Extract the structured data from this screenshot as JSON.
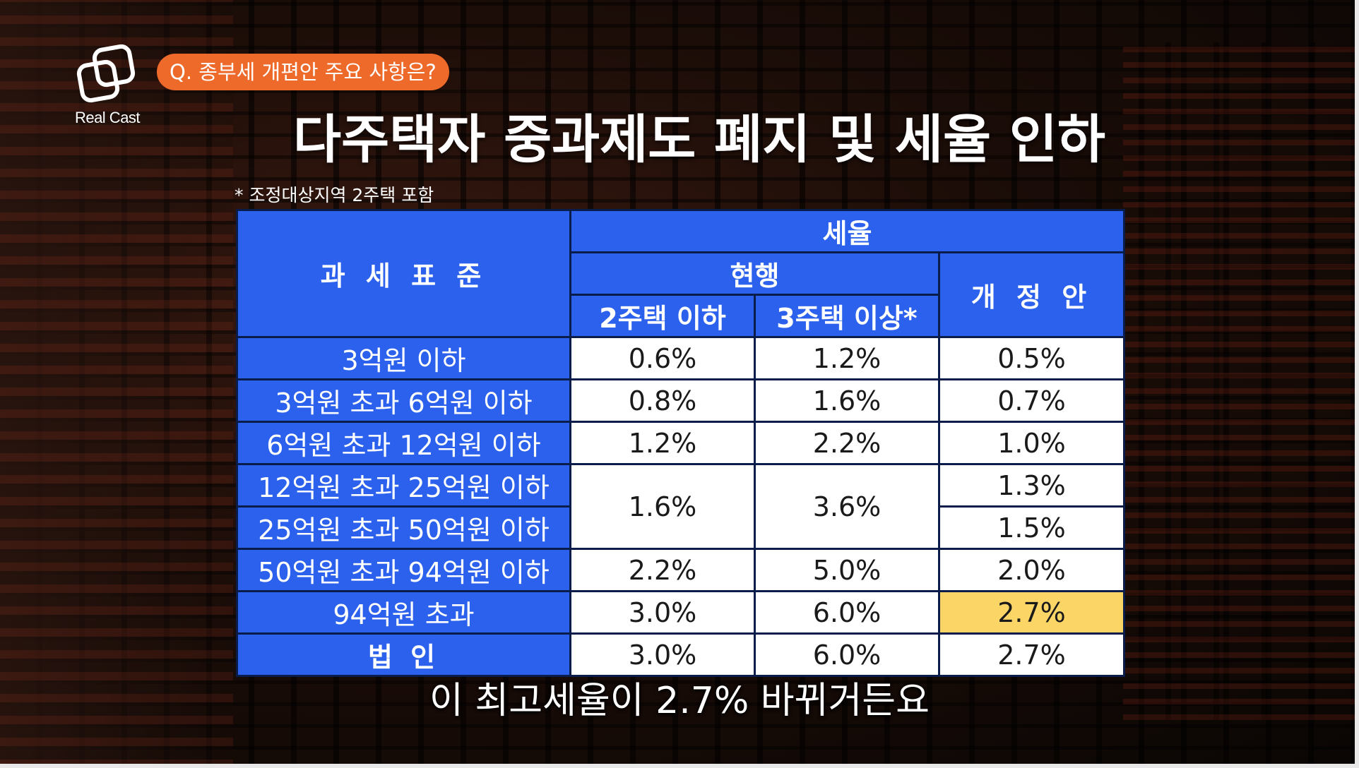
{
  "brand": {
    "logo_text": "Real Cast"
  },
  "question": "Q. 종부세 개편안 주요 사항은?",
  "title": "다주택자 중과제도 폐지 및 세율 인하",
  "footnote": "* 조정대상지역 2주택 포함",
  "table": {
    "header_base": "과 세 표 준",
    "header_rate": "세율",
    "header_current": "현행",
    "header_reform": "개 정 안",
    "header_two_or_less": "2주택 이하",
    "header_three_or_more": "3주택 이상*",
    "rows": [
      {
        "base": "3억원 이하",
        "two": "0.6%",
        "three": "1.2%",
        "reform": "0.5%"
      },
      {
        "base": "3억원 초과 6억원 이하",
        "two": "0.8%",
        "three": "1.6%",
        "reform": "0.7%"
      },
      {
        "base": "6억원 초과 12억원 이하",
        "two": "1.2%",
        "three": "2.2%",
        "reform": "1.0%"
      },
      {
        "base": "12억원 초과 25억원 이하",
        "two": "1.6%",
        "three": "3.6%",
        "reform": "1.3%"
      },
      {
        "base": "25억원 초과 50억원 이하",
        "reform": "1.5%"
      },
      {
        "base": "50억원 초과 94억원 이하",
        "two": "2.2%",
        "three": "5.0%",
        "reform": "2.0%"
      },
      {
        "base": "94억원 초과",
        "two": "3.0%",
        "three": "6.0%",
        "reform": "2.7%"
      },
      {
        "base": "법 인",
        "two": "3.0%",
        "three": "6.0%",
        "reform": "2.7%"
      }
    ]
  },
  "subtitle": "이 최고세율이 2.7% 바뀌거든요",
  "colors": {
    "table_blue": "#2b61ec",
    "highlight_yellow": "#fcd567",
    "question_orange": "#ee6a2a"
  }
}
